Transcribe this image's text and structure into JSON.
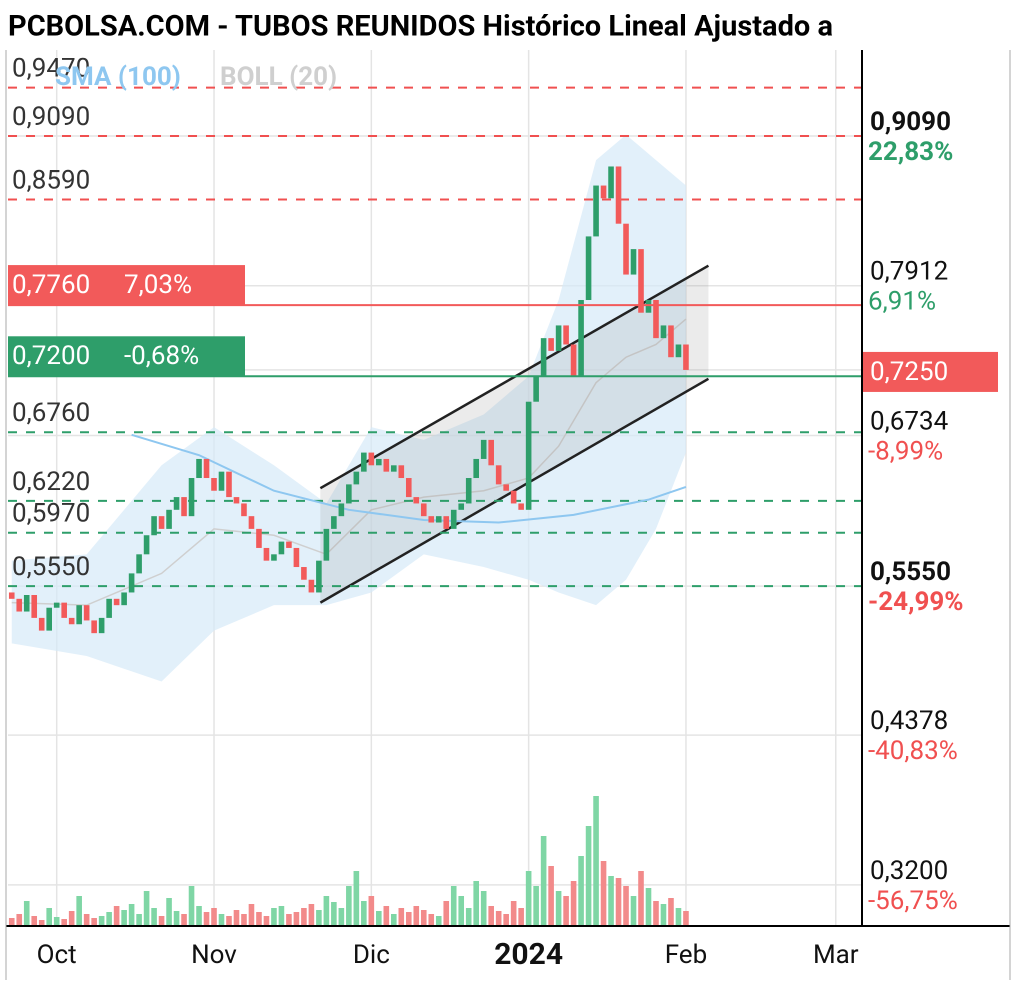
{
  "title": "PCBOLSA.COM - TUBOS REUNIDOS Histórico Lineal Ajustado a",
  "chart_data": {
    "type": "candlestick",
    "xlim": [
      -0.5,
      113.5
    ],
    "xticks": [
      {
        "value": 6,
        "label": "Oct"
      },
      {
        "value": 27,
        "label": "Nov"
      },
      {
        "value": 48,
        "label": "Dic"
      },
      {
        "value": 69,
        "label": "2024",
        "bold": true
      },
      {
        "value": 90,
        "label": "Feb"
      },
      {
        "value": 110,
        "label": "Mar"
      }
    ],
    "grid": true,
    "ylim": [
      0.2877,
      0.9766
    ],
    "up_color": "#2e9e6a",
    "down_color": "#f25a5a",
    "open": [
      0.55,
      0.545,
      0.535,
      0.548,
      0.53,
      0.52,
      0.538,
      0.542,
      0.53,
      0.525,
      0.54,
      0.528,
      0.518,
      0.53,
      0.545,
      0.54,
      0.55,
      0.565,
      0.58,
      0.595,
      0.61,
      0.6,
      0.615,
      0.625,
      0.61,
      0.64,
      0.655,
      0.64,
      0.63,
      0.645,
      0.625,
      0.62,
      0.61,
      0.6,
      0.585,
      0.575,
      0.58,
      0.59,
      0.585,
      0.57,
      0.56,
      0.55,
      0.575,
      0.6,
      0.61,
      0.62,
      0.635,
      0.645,
      0.66,
      0.65,
      0.655,
      0.645,
      0.65,
      0.64,
      0.625,
      0.62,
      0.61,
      0.605,
      0.61,
      0.6,
      0.615,
      0.62,
      0.64,
      0.655,
      0.67,
      0.65,
      0.635,
      0.63,
      0.62,
      0.615,
      0.7,
      0.72,
      0.75,
      0.74,
      0.76,
      0.745,
      0.72,
      0.78,
      0.83,
      0.87,
      0.86,
      0.885,
      0.84,
      0.8,
      0.82,
      0.77,
      0.78,
      0.75,
      0.76,
      0.735,
      0.745
    ],
    "close": [
      0.545,
      0.535,
      0.548,
      0.53,
      0.52,
      0.538,
      0.542,
      0.53,
      0.525,
      0.54,
      0.528,
      0.518,
      0.53,
      0.545,
      0.54,
      0.55,
      0.565,
      0.58,
      0.595,
      0.61,
      0.6,
      0.615,
      0.625,
      0.61,
      0.64,
      0.655,
      0.64,
      0.63,
      0.645,
      0.625,
      0.62,
      0.61,
      0.6,
      0.585,
      0.575,
      0.58,
      0.59,
      0.585,
      0.57,
      0.56,
      0.55,
      0.575,
      0.6,
      0.61,
      0.62,
      0.635,
      0.645,
      0.66,
      0.65,
      0.655,
      0.645,
      0.65,
      0.64,
      0.625,
      0.62,
      0.61,
      0.605,
      0.61,
      0.6,
      0.615,
      0.62,
      0.64,
      0.655,
      0.67,
      0.65,
      0.635,
      0.63,
      0.62,
      0.615,
      0.7,
      0.72,
      0.75,
      0.74,
      0.76,
      0.745,
      0.72,
      0.78,
      0.83,
      0.87,
      0.86,
      0.885,
      0.84,
      0.8,
      0.82,
      0.77,
      0.78,
      0.75,
      0.76,
      0.735,
      0.745,
      0.725
    ],
    "volume": [
      8,
      12,
      25,
      10,
      6,
      18,
      9,
      7,
      15,
      30,
      12,
      8,
      10,
      14,
      20,
      16,
      22,
      12,
      35,
      18,
      10,
      28,
      15,
      12,
      40,
      20,
      14,
      18,
      12,
      10,
      16,
      12,
      22,
      14,
      10,
      18,
      20,
      12,
      14,
      18,
      22,
      16,
      30,
      24,
      18,
      40,
      55,
      25,
      30,
      15,
      20,
      12,
      18,
      14,
      20,
      16,
      12,
      10,
      25,
      40,
      30,
      18,
      45,
      35,
      20,
      15,
      12,
      25,
      18,
      55,
      40,
      90,
      60,
      35,
      30,
      45,
      70,
      100,
      130,
      65,
      50,
      48,
      40,
      30,
      55,
      38,
      25,
      22,
      28,
      18,
      15
    ],
    "vlim": [
      0,
      150
    ],
    "volume_up_color": "#7fd6a5",
    "volume_down_color": "#f28a8a",
    "sma": {
      "name": "SMA (100)",
      "color": "#8ec7f0",
      "x": [
        16,
        25,
        35,
        45,
        55,
        65,
        75,
        85,
        90
      ],
      "values": [
        0.674,
        0.658,
        0.63,
        0.615,
        0.607,
        0.605,
        0.611,
        0.623,
        0.633
      ]
    },
    "boll": {
      "name": "BOLL (20)",
      "color": "#cfcfcf",
      "fill": "#d6eaf8",
      "x": [
        0,
        10,
        20,
        27,
        35,
        42,
        48,
        55,
        63,
        69,
        73,
        78,
        82,
        86,
        90
      ],
      "upper": [
        0.575,
        0.58,
        0.65,
        0.68,
        0.65,
        0.62,
        0.68,
        0.67,
        0.69,
        0.72,
        0.78,
        0.89,
        0.91,
        0.89,
        0.87
      ],
      "middle": [
        0.542,
        0.54,
        0.565,
        0.6,
        0.595,
        0.58,
        0.615,
        0.625,
        0.63,
        0.64,
        0.665,
        0.715,
        0.735,
        0.745,
        0.765
      ],
      "lower": [
        0.51,
        0.5,
        0.48,
        0.52,
        0.54,
        0.54,
        0.55,
        0.58,
        0.57,
        0.56,
        0.55,
        0.54,
        0.56,
        0.6,
        0.66
      ]
    },
    "channel": {
      "color": "#222222",
      "x": [
        41.2,
        93
      ],
      "upper": [
        0.632,
        0.807
      ],
      "lower": [
        0.542,
        0.718
      ]
    },
    "levels": [
      {
        "value": 0.947,
        "label": "0,9470",
        "color": "#f05050"
      },
      {
        "value": 0.909,
        "label": "0,9090",
        "color": "#f05050"
      },
      {
        "value": 0.859,
        "label": "0,8590",
        "color": "#f05050"
      },
      {
        "value": 0.676,
        "label": "0,6760",
        "color": "#2e9e6a"
      },
      {
        "value": 0.622,
        "label": "0,6220",
        "color": "#2e9e6a"
      },
      {
        "value": 0.597,
        "label": "0,5970",
        "color": "#2e9e6a"
      },
      {
        "value": 0.555,
        "label": "0,5550",
        "color": "#2e9e6a"
      }
    ],
    "price_boxes": [
      {
        "value": 0.776,
        "label": "0,7760",
        "change": "7,03%",
        "color": "#f25a5a"
      },
      {
        "value": 0.72,
        "label": "0,7200",
        "change": "-0,68%",
        "color": "#2e9e6a"
      }
    ],
    "right_axis": [
      {
        "value": 0.909,
        "label": "0,9090",
        "change": "22,83%",
        "bold": true,
        "change_color": "#2e9e6a"
      },
      {
        "value": 0.7912,
        "label": "0,7912",
        "change": "6,91%",
        "change_color": "#2e9e6a"
      },
      {
        "value": 0.725,
        "label": "0,7250",
        "box": "#f25a5a"
      },
      {
        "value": 0.6734,
        "label": "0,6734",
        "change": "-8,99%",
        "change_color": "#f05050"
      },
      {
        "value": 0.555,
        "label": "0,5550",
        "change": "-24,99%",
        "bold": true,
        "change_color": "#f05050"
      },
      {
        "value": 0.4378,
        "label": "0,4378",
        "change": "-40,83%",
        "change_color": "#f05050"
      },
      {
        "value": 0.32,
        "label": "0,3200",
        "change": "-56,75%",
        "change_color": "#f05050"
      }
    ]
  }
}
